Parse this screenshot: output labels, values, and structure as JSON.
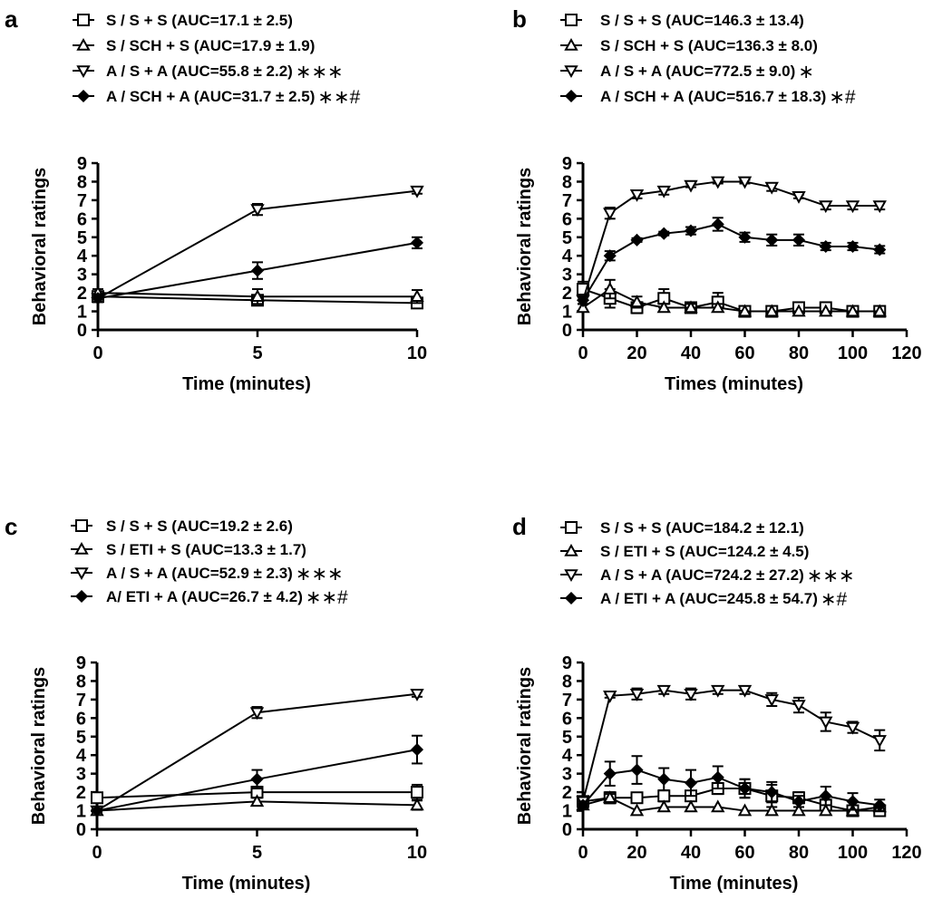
{
  "chart_data": [
    {
      "type": "line",
      "panel_letter": "a",
      "xlabel": "Time (minutes)",
      "ylabel": "Behavioral ratings",
      "xlim": [
        0,
        10
      ],
      "ylim": [
        0,
        9
      ],
      "xticks": [
        "0",
        "5",
        "10"
      ],
      "yticks": [
        "0",
        "1",
        "2",
        "3",
        "4",
        "5",
        "6",
        "7",
        "8",
        "9"
      ],
      "x": [
        0,
        5,
        10
      ],
      "legend_position": "top",
      "series": [
        {
          "name": "S / S + S (AUC=17.1 ±  2.5)",
          "significance": "",
          "marker": "square-open",
          "values": [
            1.8,
            1.6,
            1.45
          ],
          "err": [
            0.2,
            0.2,
            0.25
          ]
        },
        {
          "name": "S / SCH + S (AUC=17.9 ±  1.9)",
          "significance": "",
          "marker": "triangle-up-open",
          "values": [
            2.0,
            1.8,
            1.8
          ],
          "err": [
            0.2,
            0.4,
            0.35
          ]
        },
        {
          "name": "A / S + A (AUC=55.8 ±  2.2)",
          "significance": "∗∗∗",
          "marker": "triangle-down-open",
          "values": [
            1.7,
            6.5,
            7.5
          ],
          "err": [
            0.2,
            0.3,
            0.15
          ]
        },
        {
          "name": "A / SCH + A (AUC=31.7 ±  2.5)",
          "significance": "∗∗#",
          "marker": "diamond-filled",
          "values": [
            1.7,
            3.2,
            4.7
          ],
          "err": [
            0.2,
            0.45,
            0.3
          ]
        }
      ]
    },
    {
      "type": "line",
      "panel_letter": "b",
      "xlabel": "Times (minutes)",
      "ylabel": "Behavioral ratings",
      "xlim": [
        0,
        120
      ],
      "ylim": [
        0,
        9
      ],
      "xticks": [
        "0",
        "20",
        "40",
        "60",
        "80",
        "100",
        "120"
      ],
      "yticks": [
        "0",
        "1",
        "2",
        "3",
        "4",
        "5",
        "6",
        "7",
        "8",
        "9"
      ],
      "x": [
        0,
        10,
        20,
        30,
        40,
        50,
        60,
        70,
        80,
        90,
        100,
        110
      ],
      "legend_position": "top",
      "series": [
        {
          "name": "S / S + S (AUC=146.3 ±  13.4)",
          "significance": "",
          "marker": "square-open",
          "values": [
            2.2,
            1.7,
            1.2,
            1.7,
            1.2,
            1.5,
            1.0,
            1.0,
            1.2,
            1.2,
            1.0,
            1.0
          ],
          "err": [
            0.4,
            0.5,
            0.3,
            0.5,
            0.2,
            0.5,
            0,
            0,
            0.2,
            0.2,
            0,
            0
          ]
        },
        {
          "name": "S / SCH + S (AUC=136.3 ±  8.0)",
          "significance": "",
          "marker": "triangle-up-open",
          "values": [
            1.2,
            2.2,
            1.5,
            1.2,
            1.2,
            1.2,
            1.0,
            1.0,
            1.0,
            1.0,
            1.0,
            1.0
          ],
          "err": [
            0.2,
            0.5,
            0.3,
            0.2,
            0.2,
            0.2,
            0,
            0,
            0,
            0,
            0,
            0
          ]
        },
        {
          "name": "A / S + A (AUC=772.5 ±  9.0)",
          "significance": "∗",
          "marker": "triangle-down-open",
          "values": [
            1.6,
            6.3,
            7.3,
            7.5,
            7.8,
            8.0,
            8.0,
            7.7,
            7.2,
            6.7,
            6.7,
            6.7
          ],
          "err": [
            0.2,
            0.3,
            0.2,
            0.2,
            0.1,
            0.1,
            0.1,
            0.2,
            0.1,
            0.2,
            0.2,
            0.2
          ]
        },
        {
          "name": "A / SCH + A (AUC=516.7 ±  18.3)",
          "significance": "∗#",
          "marker": "diamond-filled",
          "values": [
            1.6,
            4.0,
            4.85,
            5.2,
            5.35,
            5.7,
            5.0,
            4.85,
            4.85,
            4.5,
            4.5,
            4.33
          ],
          "err": [
            0.2,
            0.25,
            0.1,
            0.1,
            0.2,
            0.35,
            0.25,
            0.3,
            0.3,
            0.2,
            0.2,
            0.2
          ]
        }
      ]
    },
    {
      "type": "line",
      "panel_letter": "c",
      "xlabel": "Time  (minutes)",
      "ylabel": "Behavioral ratings",
      "xlim": [
        0,
        10
      ],
      "ylim": [
        0,
        9
      ],
      "xticks": [
        "0",
        "5",
        "10"
      ],
      "yticks": [
        "0",
        "1",
        "2",
        "3",
        "4",
        "5",
        "6",
        "7",
        "8",
        "9"
      ],
      "x": [
        0,
        5,
        10
      ],
      "legend_position": "top",
      "series": [
        {
          "name": "S / S + S (AUC=19.2 ±  2.6)",
          "significance": "",
          "marker": "square-open",
          "values": [
            1.7,
            2.0,
            2.0
          ],
          "err": [
            0.25,
            0.3,
            0.4
          ]
        },
        {
          "name": "S / ETI + S (AUC=13.3 ±  1.7)",
          "significance": "",
          "marker": "triangle-up-open",
          "values": [
            1.0,
            1.5,
            1.3
          ],
          "err": [
            0.1,
            0.2,
            0.25
          ]
        },
        {
          "name": "A / S + A (AUC=52.9 ±  2.3)",
          "significance": "∗∗∗",
          "marker": "triangle-down-open",
          "values": [
            1.0,
            6.3,
            7.3
          ],
          "err": [
            0.1,
            0.3,
            0.15
          ]
        },
        {
          "name": "A/ ETI + A (AUC=26.7 ±  4.2)",
          "significance": "∗∗#",
          "marker": "diamond-filled",
          "values": [
            1.0,
            2.7,
            4.3
          ],
          "err": [
            0.1,
            0.5,
            0.75
          ]
        }
      ]
    },
    {
      "type": "line",
      "panel_letter": "d",
      "xlabel": "Time (minutes)",
      "ylabel": "Behavioral ratings",
      "xlim": [
        0,
        120
      ],
      "ylim": [
        0,
        9
      ],
      "xticks": [
        "0",
        "20",
        "40",
        "60",
        "80",
        "100",
        "120"
      ],
      "yticks": [
        "0",
        "1",
        "2",
        "3",
        "4",
        "5",
        "6",
        "7",
        "8",
        "9"
      ],
      "x": [
        0,
        10,
        20,
        30,
        40,
        50,
        60,
        70,
        80,
        90,
        100,
        110
      ],
      "legend_position": "top",
      "series": [
        {
          "name": "S / S + S (AUC=184.2 ±  12.1)",
          "significance": "",
          "marker": "square-open",
          "values": [
            1.5,
            1.7,
            1.7,
            1.8,
            1.8,
            2.2,
            2.2,
            1.8,
            1.7,
            1.3,
            1.0,
            1.0
          ],
          "err": [
            0.2,
            0.3,
            0.2,
            0.3,
            0.2,
            0.3,
            0.5,
            0.6,
            0.3,
            0.3,
            0.1,
            0.1
          ]
        },
        {
          "name": "S / ETI + S (AUC=124.2 ±  4.5)",
          "significance": "",
          "marker": "triangle-up-open",
          "values": [
            1.3,
            1.7,
            1.0,
            1.2,
            1.2,
            1.2,
            1.0,
            1.0,
            1.0,
            1.0,
            1.0,
            1.2
          ],
          "err": [
            0.2,
            0.2,
            0,
            0,
            0,
            0,
            0,
            0,
            0,
            0,
            0,
            0.1
          ]
        },
        {
          "name": "A / S + A (AUC=724.2 ±  27.2)",
          "significance": "∗∗∗",
          "marker": "triangle-down-open",
          "values": [
            1.5,
            7.2,
            7.3,
            7.5,
            7.3,
            7.5,
            7.5,
            7.0,
            6.7,
            5.8,
            5.5,
            4.8
          ],
          "err": [
            0.1,
            0.1,
            0.3,
            0.2,
            0.3,
            0.2,
            0.2,
            0.35,
            0.4,
            0.5,
            0.3,
            0.55
          ]
        },
        {
          "name": "A / ETI + A (AUC=245.8 ±  54.7)",
          "significance": "∗#",
          "marker": "diamond-filled",
          "values": [
            1.3,
            3.0,
            3.2,
            2.7,
            2.5,
            2.8,
            2.2,
            2.0,
            1.5,
            1.8,
            1.5,
            1.3
          ],
          "err": [
            0.2,
            0.65,
            0.75,
            0.6,
            0.7,
            0.6,
            0.5,
            0.55,
            0.3,
            0.5,
            0.45,
            0.3
          ]
        }
      ]
    }
  ]
}
